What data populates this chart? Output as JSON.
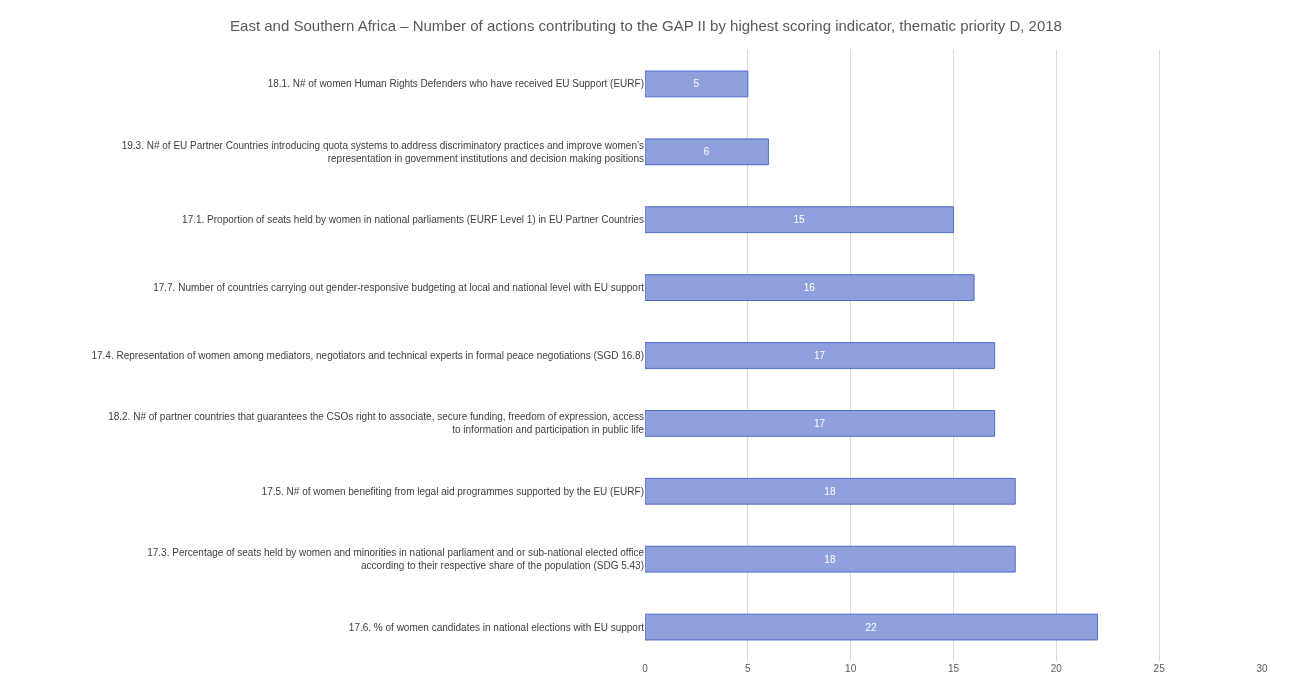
{
  "chart_data": {
    "type": "bar",
    "orientation": "horizontal",
    "title": "East and Southern Africa – Number of actions contributing to the GAP II by highest scoring indicator, thematic priority D, 2018",
    "categories": [
      "18.1. N# of women Human Rights Defenders who have received EU Support (EURF)",
      "19.3. N# of EU Partner Countries introducing quota systems to address discriminatory practices and improve women’s representation in government institutions and decision making positions",
      "17.1. Proportion of seats held by women in national parliaments (EURF Level 1) in EU Partner Countries",
      "17.7. Number of countries carrying out gender-responsive budgeting at local and national level with EU support",
      "17.4. Representation of women among mediators, negotiators and technical experts in formal peace negotiations (SGD 16.8)",
      "18.2. N# of partner countries that guarantees the CSOs right to associate, secure funding, freedom of expression, access to information and participation in public life",
      "17.5. N# of women benefiting from legal aid programmes supported by the EU (EURF)",
      "17.3. Percentage of seats held by women and minorities in national parliament and or sub-national elected office according to their respective share of the population (SDG 5.43)",
      "17.6. % of women candidates in national elections with EU support"
    ],
    "values": [
      5,
      6,
      15,
      16,
      17,
      17,
      18,
      18,
      22
    ],
    "color": "#8fa0dc",
    "data_labels": true,
    "xlim": [
      0,
      30
    ],
    "xticks": [
      0,
      5,
      10,
      15,
      20,
      25,
      30
    ],
    "grid": "x"
  }
}
